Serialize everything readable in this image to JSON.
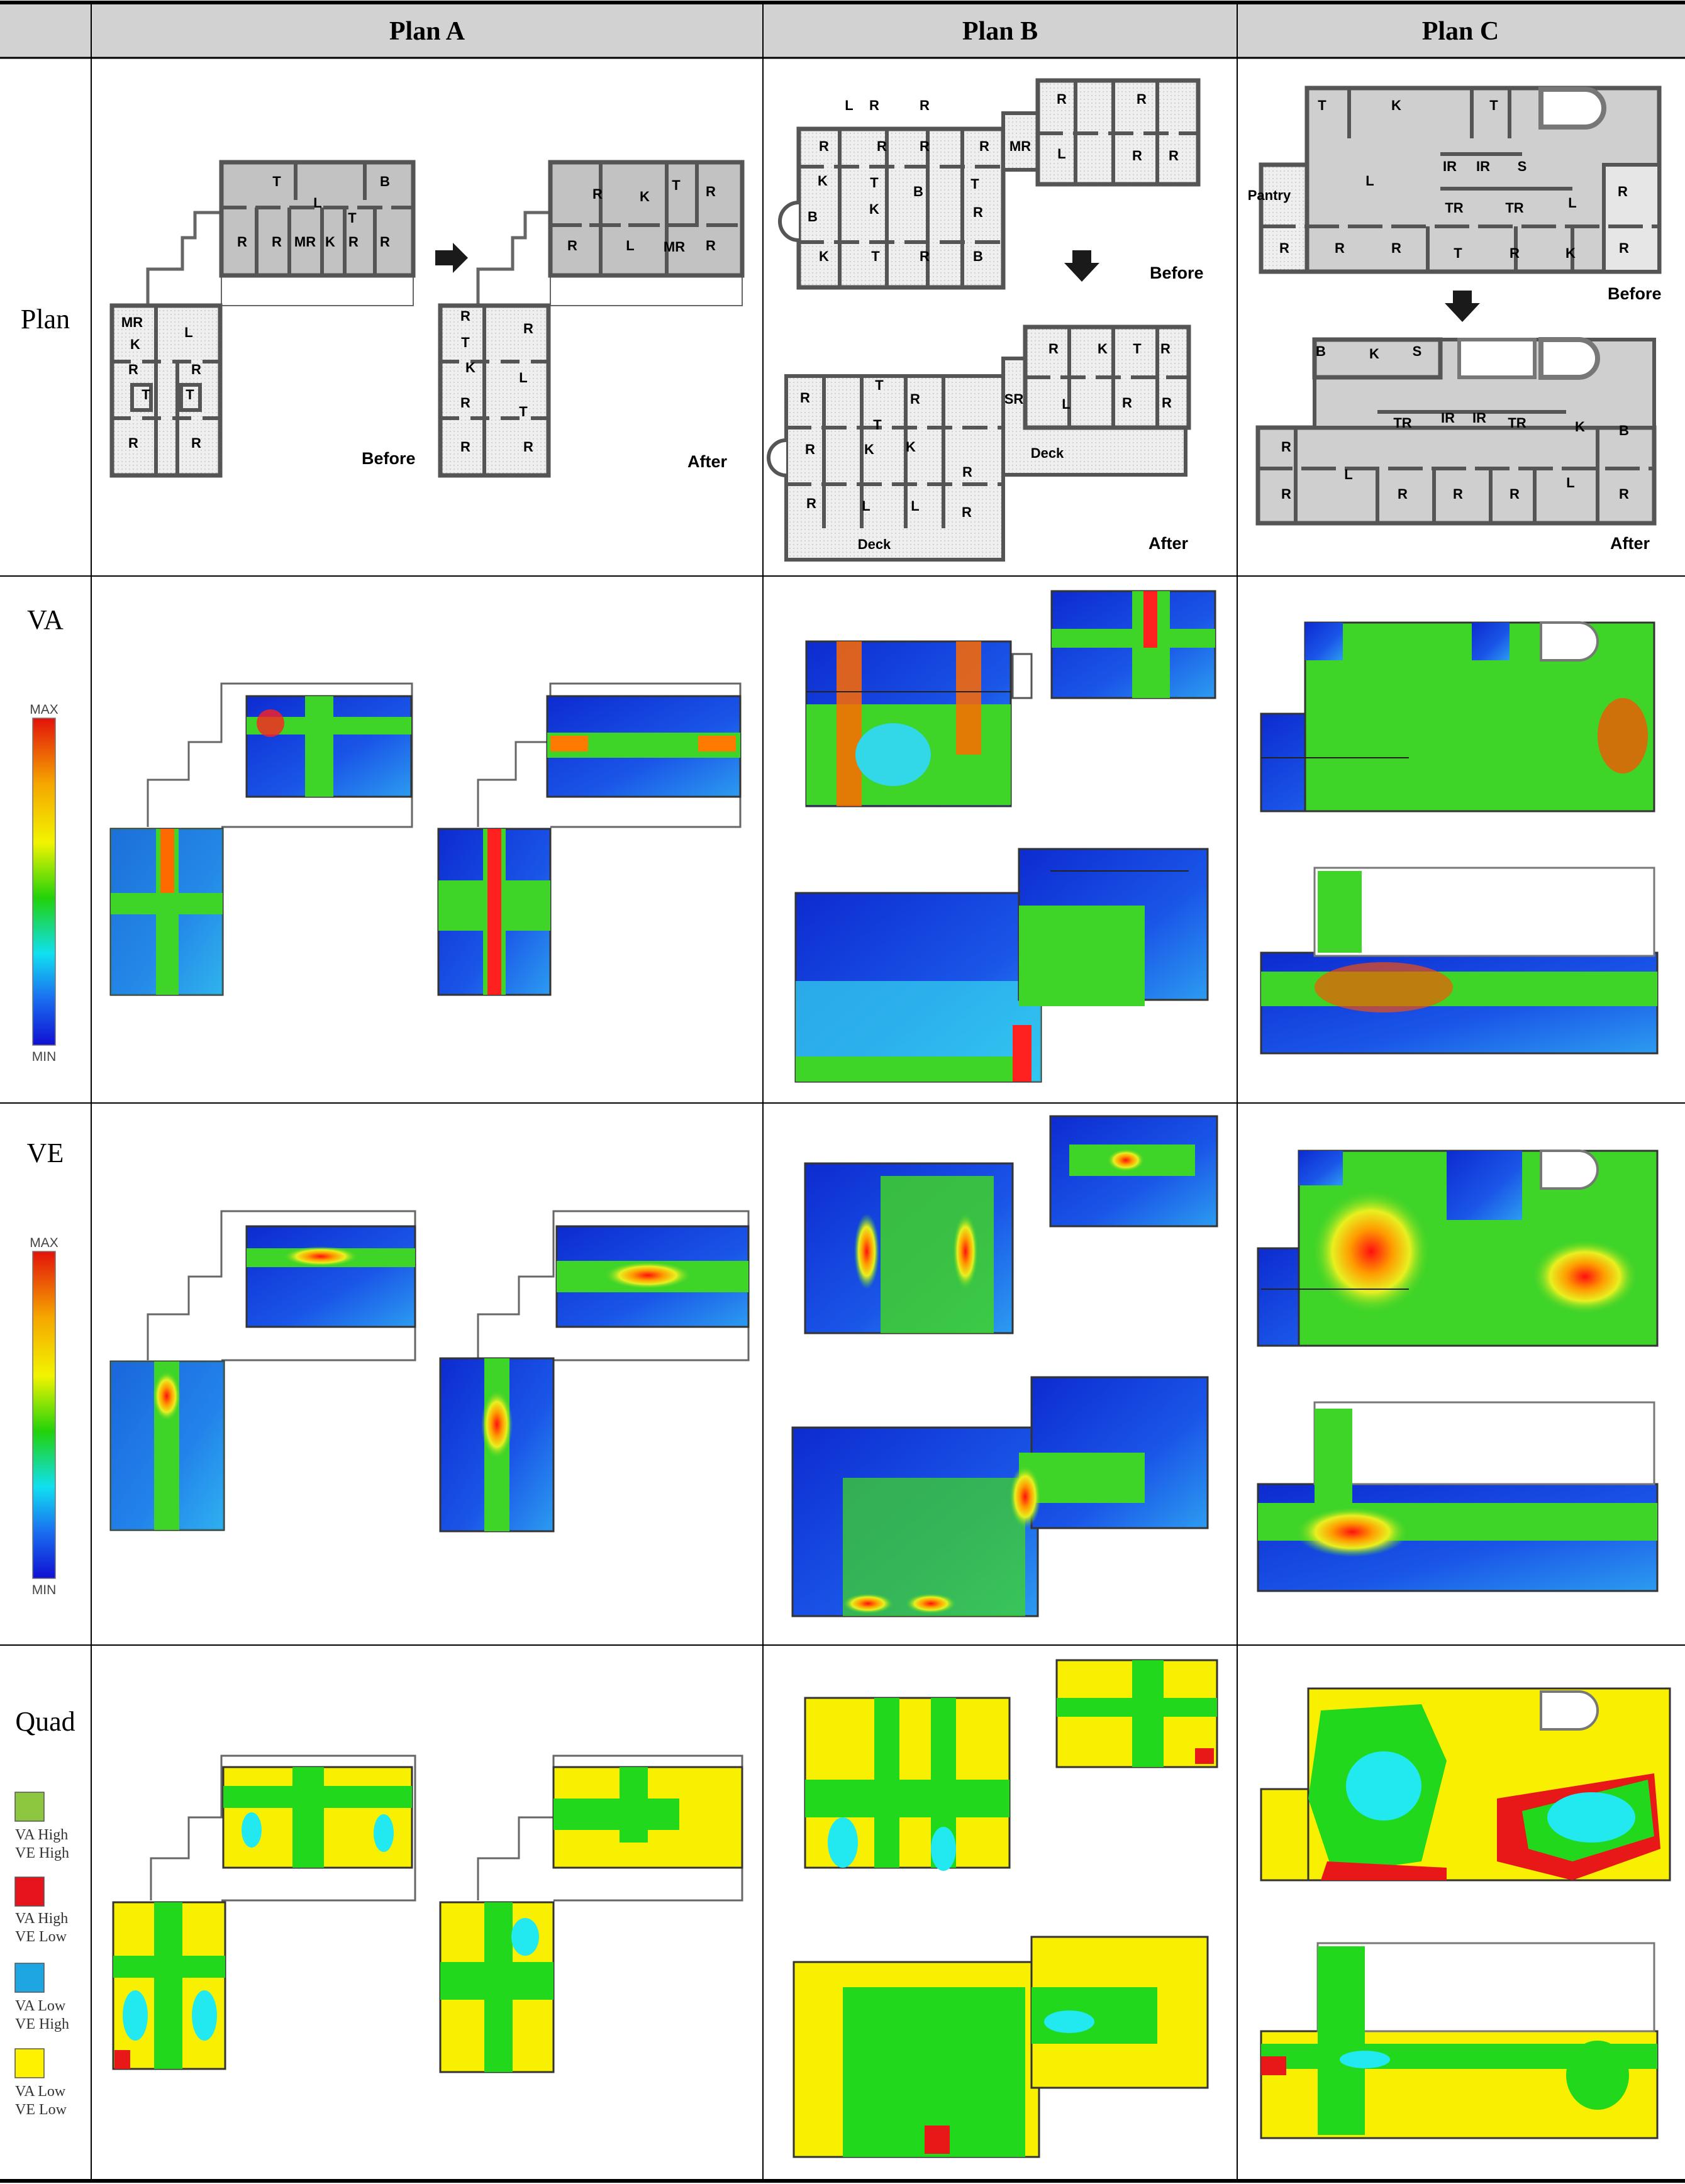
{
  "table": {
    "columns": [
      "Plan  A",
      "Plan  B",
      "Plan  C"
    ],
    "rows": [
      "Plan",
      "VA",
      "VE",
      "Quad"
    ]
  },
  "captions": {
    "before": "Before",
    "after": "After"
  },
  "plan_labels": {
    "a_before": [
      "MR",
      "K",
      "L",
      "R",
      "R",
      "T",
      "T",
      "R",
      "R",
      "T",
      "B",
      "L",
      "T",
      "R",
      "R",
      "MR",
      "K",
      "R",
      "R"
    ],
    "a_after": [
      "R",
      "R",
      "T",
      "K",
      "L",
      "R",
      "T",
      "R",
      "R",
      "R",
      "K",
      "T",
      "R",
      "R",
      "L",
      "MR",
      "R"
    ],
    "b_before": [
      "R",
      "R",
      "R",
      "R",
      "MR",
      "R",
      "T",
      "B",
      "T",
      "K",
      "K",
      "B",
      "R",
      "L",
      "R",
      "R",
      "R",
      "K",
      "T",
      "R",
      "B",
      "L",
      "R",
      "R"
    ],
    "b_after": [
      "R",
      "T",
      "R",
      "T",
      "R",
      "K",
      "K",
      "R",
      "L",
      "L",
      "R",
      "R",
      "SR",
      "R",
      "K",
      "T",
      "R",
      "L",
      "R",
      "R",
      "Deck",
      "Deck"
    ],
    "c_before": [
      "T",
      "K",
      "T",
      "Pantry",
      "L",
      "IR",
      "IR",
      "S",
      "TR",
      "TR",
      "L",
      "R",
      "R",
      "R",
      "R",
      "T",
      "R",
      "K",
      "R"
    ],
    "c_after": [
      "B",
      "K",
      "S",
      "TR",
      "IR",
      "IR",
      "TR",
      "K",
      "B",
      "R",
      "L",
      "R",
      "R",
      "R",
      "L",
      "R",
      "R"
    ]
  },
  "scale": {
    "max_label": "MAX",
    "min_label": "MIN"
  },
  "quad_legend": [
    {
      "line1": "VA High",
      "line2": "VE High",
      "color": "#8dc63f"
    },
    {
      "line1": "VA High",
      "line2": "VE Low",
      "color": "#e8141b"
    },
    {
      "line1": "VA Low",
      "line2": "VE High",
      "color": "#1ea6e3"
    },
    {
      "line1": "VA Low",
      "line2": "VE Low",
      "color": "#fff200"
    }
  ],
  "colors": {
    "wall": "#555555",
    "shaded_room": "#c2c2c2",
    "floor": "#eeeeee",
    "map_blue": "#1535d8",
    "map_cyan": "#35d8f0",
    "map_green": "#3fd428",
    "map_yellow": "#e4f03a",
    "map_red": "#f01010",
    "quad_green": "#22d81c",
    "quad_red": "#e81818",
    "quad_cyan": "#22e8f0",
    "quad_yellow": "#f8f000"
  }
}
